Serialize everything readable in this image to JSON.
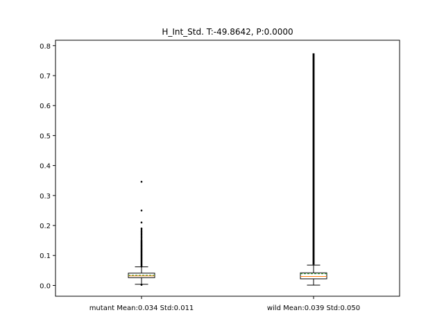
{
  "chart_data": {
    "type": "box",
    "title": "H_Int_Std. T:-49.8642, P:0.0000",
    "xlabel": "",
    "ylabel": "",
    "ylim": [
      -0.036,
      0.818
    ],
    "yticks": [
      0.0,
      0.1,
      0.2,
      0.3,
      0.4,
      0.5,
      0.6,
      0.7,
      0.8
    ],
    "ytick_labels": [
      "0.0",
      "0.1",
      "0.2",
      "0.3",
      "0.4",
      "0.5",
      "0.6",
      "0.7",
      "0.8"
    ],
    "grid": false,
    "median_color": "#ff7f0e",
    "mean_color": "#2ca02c",
    "categories": [
      "mutant Mean:0.034 Std:0.011",
      "wild Mean:0.039 Std:0.050"
    ],
    "boxes": [
      {
        "label": "mutant Mean:0.034 Std:0.011",
        "whisker_low": 0.004,
        "q1": 0.026,
        "median": 0.032,
        "mean": 0.034,
        "q3": 0.041,
        "whisker_high": 0.062,
        "outliers": [
          0.346,
          0.25,
          0.21,
          0.19,
          0.185,
          0.18,
          0.175,
          0.17,
          0.165,
          0.16,
          0.155,
          0.15,
          0.147,
          0.144,
          0.141,
          0.138,
          0.135,
          0.132,
          0.129,
          0.126,
          0.123,
          0.12,
          0.117,
          0.114,
          0.111,
          0.108,
          0.105,
          0.102,
          0.099,
          0.096,
          0.093,
          0.09,
          0.087,
          0.084,
          0.081,
          0.078,
          0.075,
          0.072,
          0.069,
          0.066,
          0.063,
          0.003,
          0.002
        ]
      },
      {
        "label": "wild Mean:0.039 Std:0.050",
        "whisker_low": 0.001,
        "q1": 0.022,
        "median": 0.03,
        "mean": 0.039,
        "q3": 0.042,
        "whisker_high": 0.068,
        "outlier_range": [
          0.069,
          0.772
        ]
      }
    ]
  }
}
